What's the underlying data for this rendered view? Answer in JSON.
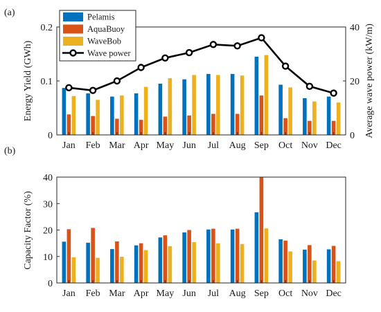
{
  "chart_data": [
    {
      "panel_label": "(a)",
      "type": "bar",
      "categories": [
        "Jan",
        "Feb",
        "Mar",
        "Apr",
        "May",
        "Jun",
        "Jul",
        "Aug",
        "Sep",
        "Oct",
        "Nov",
        "Dec"
      ],
      "ylabel": "Energy Yield (GWh)",
      "ylabel_right": "Average wave power (kW/m)",
      "ylim": [
        0,
        0.2
      ],
      "yticks": [
        "0",
        "0.1",
        "0.2"
      ],
      "ylim_right": [
        0,
        40
      ],
      "yticks_right": [
        "0",
        "20",
        "40"
      ],
      "legend_position": "top-left",
      "series": [
        {
          "name": "Pelamis",
          "kind": "bar",
          "color": "#0072BD",
          "values": [
            0.087,
            0.077,
            0.071,
            0.077,
            0.095,
            0.103,
            0.113,
            0.113,
            0.145,
            0.093,
            0.068,
            0.071
          ]
        },
        {
          "name": "AquaBuoy",
          "kind": "bar",
          "color": "#D95319",
          "values": [
            0.038,
            0.035,
            0.03,
            0.028,
            0.034,
            0.036,
            0.039,
            0.039,
            0.073,
            0.031,
            0.026,
            0.026
          ]
        },
        {
          "name": "WaveBob",
          "kind": "bar",
          "color": "#EDB120",
          "values": [
            0.072,
            0.065,
            0.073,
            0.089,
            0.105,
            0.111,
            0.111,
            0.11,
            0.148,
            0.088,
            0.062,
            0.06
          ]
        },
        {
          "name": "Wave power",
          "kind": "line",
          "color": "#000000",
          "axis": "right",
          "values": [
            17.5,
            16.5,
            20,
            25,
            28.5,
            30.5,
            33.5,
            33,
            36,
            25.5,
            18,
            15.5
          ]
        }
      ]
    },
    {
      "panel_label": "(b)",
      "type": "bar",
      "categories": [
        "Jan",
        "Feb",
        "Mar",
        "Apr",
        "May",
        "Jun",
        "Jul",
        "Aug",
        "Sep",
        "Oct",
        "Nov",
        "Dec"
      ],
      "ylabel": "Capacity Factor (%)",
      "ylim": [
        0,
        40
      ],
      "yticks": [
        "0",
        "10",
        "20",
        "30",
        "40"
      ],
      "series": [
        {
          "name": "Pelamis",
          "color": "#0072BD",
          "values": [
            15.6,
            15.2,
            12.8,
            14.2,
            17.2,
            19.1,
            20.2,
            20.2,
            26.7,
            16.5,
            12.6,
            12.7
          ]
        },
        {
          "name": "AquaBuoy",
          "color": "#D95319",
          "values": [
            20.3,
            20.8,
            15.7,
            15.0,
            18.0,
            20.0,
            20.5,
            20.5,
            42.0,
            16.0,
            14.3,
            14.0
          ]
        },
        {
          "name": "WaveBob",
          "color": "#EDB120",
          "values": [
            9.7,
            9.5,
            9.9,
            12.4,
            13.9,
            15.4,
            15.0,
            14.7,
            20.6,
            11.9,
            8.5,
            8.2
          ]
        }
      ]
    }
  ]
}
